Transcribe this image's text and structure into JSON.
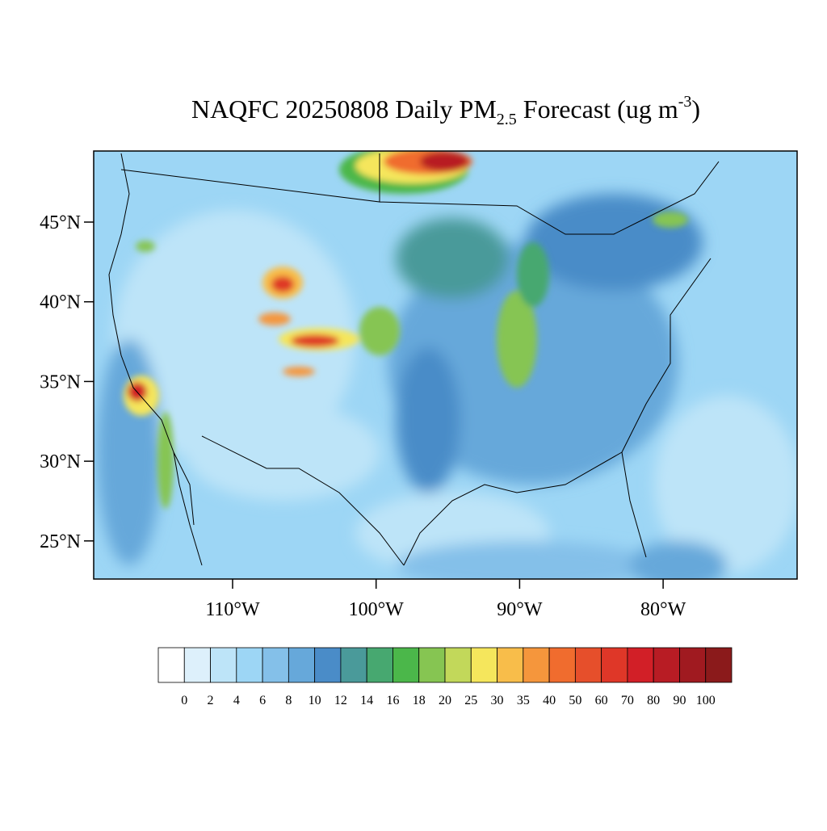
{
  "title": {
    "main": "NAQFC 20250808 Daily PM",
    "sub": "2.5",
    "mid": " Forecast (ug m",
    "sup": "-3",
    "end": ")"
  },
  "lat_ticks": [
    {
      "value": 45,
      "label": "45°N"
    },
    {
      "value": 40,
      "label": "40°N"
    },
    {
      "value": 35,
      "label": "35°N"
    },
    {
      "value": 30,
      "label": "30°N"
    },
    {
      "value": 25,
      "label": "25°N"
    }
  ],
  "lon_ticks": [
    {
      "value": -110,
      "label": "110°W"
    },
    {
      "value": -100,
      "label": "100°W"
    },
    {
      "value": -90,
      "label": "90°W"
    },
    {
      "value": -80,
      "label": "80°W"
    }
  ],
  "colorbar": {
    "levels": [
      0,
      2,
      4,
      6,
      8,
      10,
      12,
      14,
      16,
      18,
      20,
      25,
      30,
      35,
      40,
      50,
      60,
      70,
      80,
      90,
      100
    ],
    "colors": [
      "#ffffff",
      "#ddf0fb",
      "#bde4f8",
      "#9dd6f5",
      "#84c0e9",
      "#66a8da",
      "#4a8cc8",
      "#4a9a9a",
      "#47a870",
      "#4bb74a",
      "#86c552",
      "#c2d85a",
      "#f5e65c",
      "#f8bd4a",
      "#f5963c",
      "#f06c2e",
      "#e64f2b",
      "#df3728",
      "#d21f27",
      "#b81c24",
      "#a01a20",
      "#8b1a1b"
    ]
  }
}
